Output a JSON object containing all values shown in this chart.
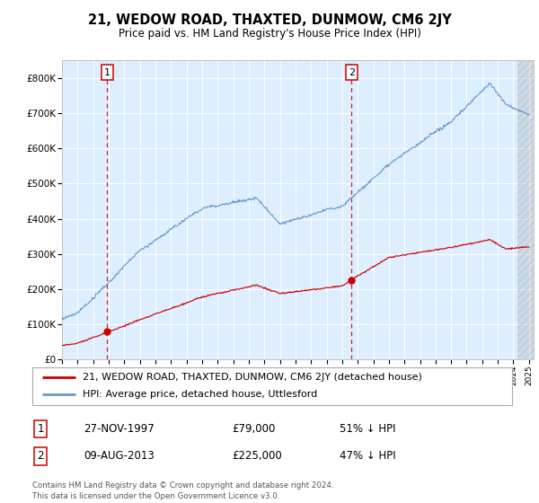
{
  "title": "21, WEDOW ROAD, THAXTED, DUNMOW, CM6 2JY",
  "subtitle": "Price paid vs. HM Land Registry's House Price Index (HPI)",
  "ylim": [
    0,
    850000
  ],
  "yticks": [
    0,
    100000,
    200000,
    300000,
    400000,
    500000,
    600000,
    700000,
    800000
  ],
  "ytick_labels": [
    "£0",
    "£100K",
    "£200K",
    "£300K",
    "£400K",
    "£500K",
    "£600K",
    "£700K",
    "£800K"
  ],
  "xlim_start": 1995.0,
  "xlim_end": 2025.3,
  "plot_bg_color": "#ddeeff",
  "legend_line1": "21, WEDOW ROAD, THAXTED, DUNMOW, CM6 2JY (detached house)",
  "legend_line2": "HPI: Average price, detached house, Uttlesford",
  "sale1_date": "27-NOV-1997",
  "sale1_price": "£79,000",
  "sale1_hpi": "51% ↓ HPI",
  "sale1_x": 1997.9,
  "sale1_y": 79000,
  "sale2_date": "09-AUG-2013",
  "sale2_price": "£225,000",
  "sale2_hpi": "47% ↓ HPI",
  "sale2_x": 2013.6,
  "sale2_y": 225000,
  "hpi_color": "#6699cc",
  "sale_color": "#cc0000",
  "footer": "Contains HM Land Registry data © Crown copyright and database right 2024.\nThis data is licensed under the Open Government Licence v3.0."
}
